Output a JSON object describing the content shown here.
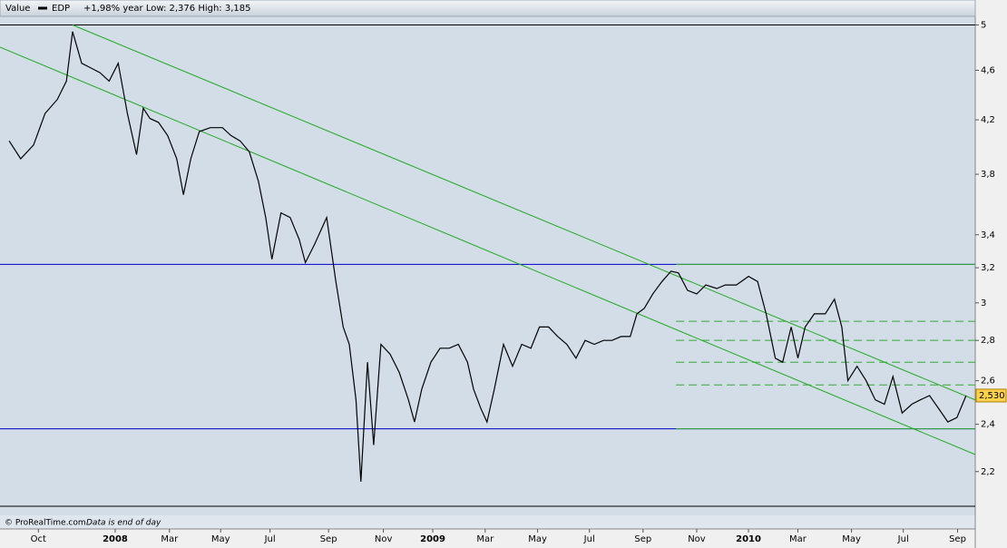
{
  "chart_data": {
    "type": "line",
    "header": {
      "label": "Value",
      "stats": "+1,98%  year Low: 2,376 High: 3,185"
    },
    "footer": {
      "source": "© ProRealTime.com",
      "note": "Data is end of day"
    },
    "log_scale": true,
    "ylim": [
      2.03,
      5.08
    ],
    "yticks": [
      {
        "value": 2.2,
        "label": "2,2"
      },
      {
        "value": 2.4,
        "label": "2,4"
      },
      {
        "value": 2.6,
        "label": "2,6"
      },
      {
        "value": 2.8,
        "label": "2,8"
      },
      3,
      {
        "value": 3.2,
        "label": "3,2"
      },
      {
        "value": 3.4,
        "label": "3,4"
      },
      {
        "value": 3.8,
        "label": "3,8"
      },
      {
        "value": 4.2,
        "label": "4,2"
      },
      {
        "value": 4.6,
        "label": "4,6"
      },
      5
    ],
    "xlim": [
      -18.9,
      141.1
    ],
    "xticks": [
      {
        "value": -12.6,
        "label": "Oct"
      },
      {
        "value": 0,
        "label": "2008"
      },
      {
        "value": 8.9,
        "label": "Mar"
      },
      {
        "value": 17.3,
        "label": "May"
      },
      {
        "value": 25.4,
        "label": "Jul"
      },
      {
        "value": 35,
        "label": "Sep"
      },
      {
        "value": 44,
        "label": "Nov"
      },
      {
        "value": 52.1,
        "label": "2009"
      },
      {
        "value": 60.7,
        "label": "Mar"
      },
      {
        "value": 69.3,
        "label": "May"
      },
      {
        "value": 77.8,
        "label": "Jul"
      },
      {
        "value": 86.6,
        "label": "Sep"
      },
      {
        "value": 95.4,
        "label": "Nov"
      },
      {
        "value": 103.9,
        "label": "2010"
      },
      {
        "value": 112,
        "label": "Mar"
      },
      {
        "value": 120.8,
        "label": "May"
      },
      {
        "value": 129.3,
        "label": "Jul"
      },
      {
        "value": 138.2,
        "label": "Sep"
      }
    ],
    "series": [
      {
        "name": "EDP",
        "color": "#000000",
        "x": [
          -17.4,
          -15.5,
          -13.4,
          -11.5,
          -9.5,
          -8,
          -7,
          -5.5,
          -4,
          -2.5,
          -1,
          0.5,
          2,
          3.5,
          4.6,
          5.7,
          7.1,
          8.6,
          10.1,
          11.2,
          12.4,
          13.8,
          15.6,
          17.6,
          19,
          20.5,
          22,
          23.5,
          24.7,
          25.7,
          27.2,
          28.7,
          30.2,
          31.2,
          32.7,
          34.7,
          36.2,
          37.4,
          38.4,
          39.5,
          40.3,
          41.4,
          42.4,
          43.6,
          45.1,
          46.6,
          48.1,
          49.1,
          50.3,
          51.8,
          53.3,
          54.8,
          56.3,
          57.8,
          58.8,
          60,
          61,
          62.2,
          63.7,
          65.2,
          66.7,
          68.2,
          69.6,
          71.1,
          72.6,
          74.1,
          75.6,
          77.1,
          78.6,
          80.1,
          81.5,
          83,
          84.5,
          85.6,
          86.8,
          88.2,
          89.7,
          91.2,
          92.4,
          93.9,
          95.4,
          96.9,
          98.7,
          100.1,
          101.9,
          103.9,
          105.4,
          106.8,
          108.3,
          109.5,
          110.9,
          112,
          113.2,
          114.7,
          116.5,
          118,
          119.2,
          120.2,
          121.7,
          123.2,
          124.7,
          126.2,
          127.6,
          129.1,
          130.7,
          132.1,
          133.6,
          135.1,
          136.6,
          138.1,
          139.6
        ],
        "values": [
          4.04,
          3.91,
          4.01,
          4.25,
          4.36,
          4.51,
          4.94,
          4.66,
          4.62,
          4.58,
          4.51,
          4.66,
          4.25,
          3.94,
          4.29,
          4.21,
          4.18,
          4.08,
          3.91,
          3.66,
          3.91,
          4.11,
          4.14,
          4.14,
          4.08,
          4.04,
          3.96,
          3.75,
          3.51,
          3.25,
          3.54,
          3.51,
          3.37,
          3.23,
          3.34,
          3.51,
          3.12,
          2.87,
          2.78,
          2.51,
          2.16,
          2.69,
          2.31,
          2.78,
          2.73,
          2.64,
          2.51,
          2.41,
          2.56,
          2.69,
          2.76,
          2.76,
          2.78,
          2.69,
          2.56,
          2.47,
          2.41,
          2.56,
          2.78,
          2.67,
          2.78,
          2.76,
          2.87,
          2.87,
          2.82,
          2.78,
          2.71,
          2.8,
          2.78,
          2.8,
          2.8,
          2.82,
          2.82,
          2.94,
          2.97,
          3.05,
          3.12,
          3.18,
          3.17,
          3.07,
          3.05,
          3.1,
          3.08,
          3.1,
          3.1,
          3.15,
          3.12,
          2.94,
          2.71,
          2.69,
          2.87,
          2.71,
          2.87,
          2.94,
          2.94,
          3.02,
          2.87,
          2.6,
          2.67,
          2.6,
          2.51,
          2.49,
          2.62,
          2.45,
          2.49,
          2.51,
          2.53,
          2.47,
          2.41,
          2.43,
          2.53
        ]
      }
    ],
    "last_value": {
      "value": 2.53,
      "label": "2,530"
    },
    "hlines": [
      {
        "value": 3.22,
        "color": "#0000cc"
      },
      {
        "value": 2.38,
        "color": "#0000cc"
      }
    ],
    "levels": [
      {
        "value": 3.22,
        "from": 92,
        "color": "#33aa33",
        "dashed": false
      },
      {
        "value": 2.9,
        "from": 92,
        "color": "#33aa33",
        "dashed": true
      },
      {
        "value": 2.8,
        "from": 92,
        "color": "#33aa33",
        "dashed": true
      },
      {
        "value": 2.69,
        "from": 92,
        "color": "#33aa33",
        "dashed": true
      },
      {
        "value": 2.58,
        "from": 92,
        "color": "#33aa33",
        "dashed": true
      },
      {
        "value": 2.38,
        "from": 92,
        "color": "#33aa33",
        "dashed": false
      }
    ],
    "trendlines": [
      {
        "x": [
          -7,
          141.1
        ],
        "y": [
          5,
          2.51
        ],
        "color": "#22aa22"
      },
      {
        "x": [
          -18.9,
          141.1
        ],
        "y": [
          4.8,
          2.27
        ],
        "color": "#22aa22"
      }
    ]
  }
}
